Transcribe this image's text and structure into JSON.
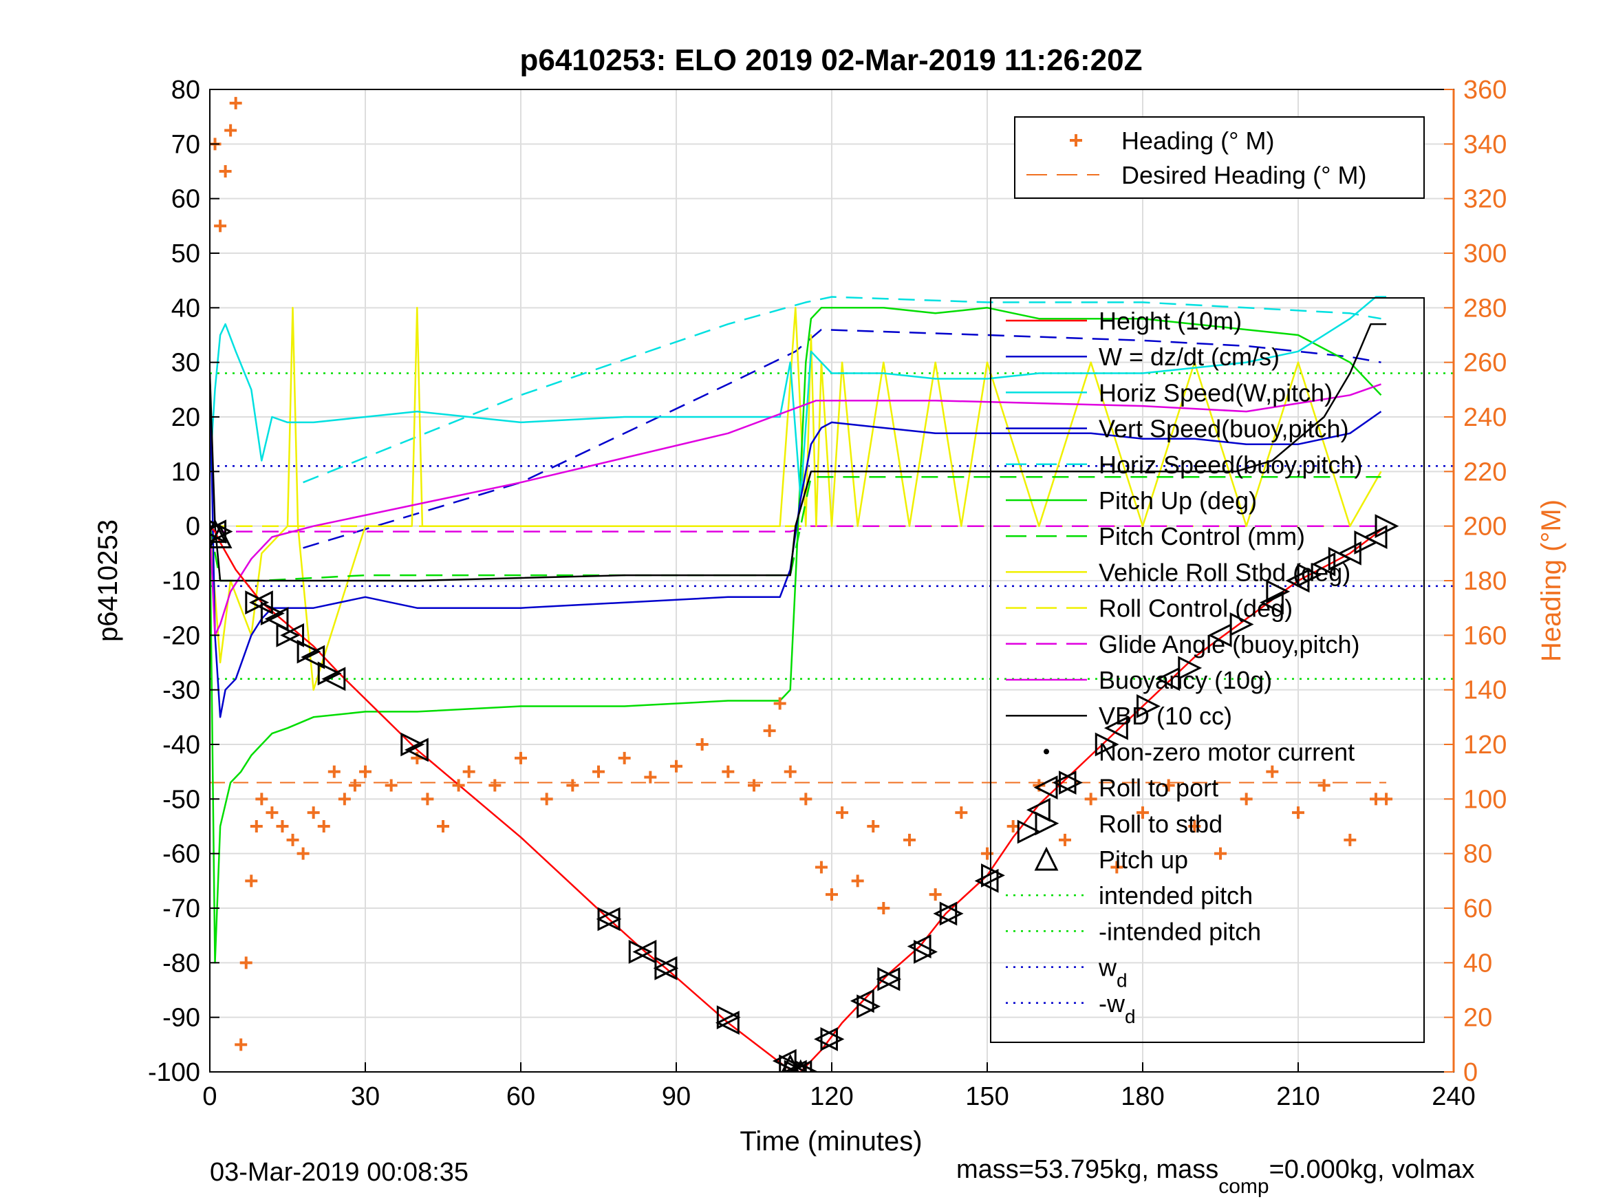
{
  "colors": {
    "heading": "#f07020",
    "height": "#ff0000",
    "w": "#0000cc",
    "horiz_speed": "#00e0e0",
    "pitch": "#00dd00",
    "roll": "#f0f000",
    "glide": "#e000e0",
    "vbd": "#000000",
    "grid": "#dddddd"
  },
  "chart_data": {
    "type": "line",
    "title": "p6410253: ELO 2019 02-Mar-2019 11:26:20Z",
    "xlabel": "Time (minutes)",
    "ylabel_left": "p6410253",
    "ylabel_right": "Heading (°M)",
    "xlim": [
      0,
      240
    ],
    "ylim_left": [
      -100,
      80
    ],
    "ylim_right": [
      0,
      360
    ],
    "grid": true,
    "x_ticks": [
      "0",
      "30",
      "60",
      "90",
      "120",
      "150",
      "180",
      "210",
      "240"
    ],
    "y_ticks_left": [
      "80",
      "70",
      "60",
      "50",
      "40",
      "30",
      "20",
      "10",
      "0",
      "-10",
      "-20",
      "-30",
      "-40",
      "-50",
      "-60",
      "-70",
      "-80",
      "-90",
      "-100"
    ],
    "y_ticks_right": [
      "360",
      "340",
      "320",
      "300",
      "280",
      "260",
      "240",
      "220",
      "200",
      "180",
      "160",
      "140",
      "120",
      "100",
      "80",
      "60",
      "40",
      "20",
      "0"
    ],
    "legend_upper": {
      "placement": "top-right",
      "entries": [
        {
          "label": "Heading (° M)",
          "style": "plus",
          "color": "#f07020"
        },
        {
          "label": "Desired Heading (° M)",
          "style": "dash",
          "color": "#f07020"
        }
      ]
    },
    "legend_main": {
      "placement": "right",
      "entries": [
        {
          "label": "Height (10m)",
          "style": "line",
          "color": "#ff0000"
        },
        {
          "label": "W = dz/dt (cm/s)",
          "style": "line",
          "color": "#0000cc"
        },
        {
          "label": "Horiz Speed(W,pitch)",
          "style": "line",
          "color": "#00e0e0"
        },
        {
          "label": "Vert Speed(buoy,pitch)",
          "style": "line",
          "color": "#0000cc"
        },
        {
          "label": "Horiz Speed(buoy,pitch)",
          "style": "dash",
          "color": "#00e0e0"
        },
        {
          "label": "Pitch Up (deg)",
          "style": "line",
          "color": "#00dd00"
        },
        {
          "label": "Pitch Control (mm)",
          "style": "dash",
          "color": "#00dd00"
        },
        {
          "label": "Vehicle Roll Stbd (deg)",
          "style": "line",
          "color": "#f0f000"
        },
        {
          "label": "Roll Control (deg)",
          "style": "dash",
          "color": "#f0f000"
        },
        {
          "label": "Glide Angle (buoy,pitch)",
          "style": "dash",
          "color": "#e000e0"
        },
        {
          "label": "Buoyancy (10g)",
          "style": "line",
          "color": "#e000e0"
        },
        {
          "label": "VBD (10 cc)",
          "style": "line",
          "color": "#000000"
        },
        {
          "label": "Non-zero motor current",
          "style": "dot",
          "color": "#000000"
        },
        {
          "label": "Roll to port",
          "style": "tri-left",
          "color": "#000000"
        },
        {
          "label": "Roll to stbd",
          "style": "tri-right",
          "color": "#000000"
        },
        {
          "label": "Pitch up",
          "style": "tri-up",
          "color": "#000000"
        },
        {
          "label": "intended pitch",
          "style": "dot-line",
          "color": "#00dd00"
        },
        {
          "label": "-intended pitch",
          "style": "dot-line",
          "color": "#00dd00"
        },
        {
          "label": "w_d",
          "style": "dot-line",
          "color": "#0000cc"
        },
        {
          "label": "-w_d",
          "style": "dot-line",
          "color": "#0000cc"
        }
      ]
    },
    "series": [
      {
        "name": "Height (10m)",
        "color": "#ff0000",
        "x": [
          0,
          1,
          2,
          5,
          10,
          15,
          20,
          25,
          40,
          60,
          77,
          84,
          88,
          100,
          111,
          113,
          114,
          115,
          118,
          122,
          127,
          131,
          137,
          142,
          150,
          155,
          160,
          170,
          180,
          190,
          200,
          210,
          220,
          227
        ],
        "y": [
          0,
          -1,
          -3,
          -8,
          -14,
          -18,
          -22,
          -27,
          -41,
          -57,
          -72,
          -78,
          -81,
          -91,
          -99,
          -100,
          -100,
          -99,
          -96,
          -91,
          -86,
          -82,
          -77,
          -71,
          -64,
          -57,
          -51,
          -42,
          -33,
          -24,
          -17,
          -10,
          -5,
          0
        ]
      },
      {
        "name": "W = dz/dt (cm/s)",
        "color": "#0000cc",
        "x": [
          0,
          1,
          2,
          3,
          5,
          8,
          10,
          12,
          15,
          20,
          30,
          40,
          60,
          80,
          100,
          110,
          112,
          114,
          116,
          118,
          120,
          130,
          140,
          150,
          160,
          170,
          180,
          190,
          200,
          210,
          220,
          226
        ],
        "y": [
          28,
          -20,
          -35,
          -30,
          -28,
          -20,
          -17,
          -15,
          -15,
          -15,
          -13,
          -15,
          -15,
          -14,
          -13,
          -13,
          -8,
          5,
          15,
          18,
          19,
          18,
          17,
          17,
          17,
          17,
          16,
          16,
          15,
          15,
          17,
          21
        ]
      },
      {
        "name": "Horiz Speed(W,pitch)",
        "color": "#00e0e0",
        "x": [
          0,
          1,
          2,
          3,
          5,
          8,
          10,
          12,
          15,
          20,
          30,
          40,
          60,
          80,
          100,
          110,
          112,
          114,
          116,
          118,
          120,
          130,
          140,
          150,
          160,
          170,
          180,
          190,
          200,
          210,
          220,
          225,
          227
        ],
        "y": [
          10,
          25,
          35,
          37,
          32,
          25,
          12,
          20,
          19,
          19,
          20,
          21,
          19,
          20,
          20,
          20,
          30,
          5,
          32,
          30,
          28,
          28,
          27,
          27,
          28,
          28,
          28,
          29,
          30,
          32,
          38,
          42,
          42
        ]
      },
      {
        "name": "Horiz Speed(buoy,pitch)",
        "color": "#00e0e0",
        "dash": true,
        "x": [
          18,
          60,
          100,
          115,
          120,
          150,
          180,
          200,
          220,
          226
        ],
        "y": [
          8,
          24,
          37,
          41,
          42,
          41,
          41,
          40,
          39,
          38
        ]
      },
      {
        "name": "Vert Speed(buoy,pitch)",
        "color": "#0000cc",
        "dash": true,
        "x": [
          18,
          60,
          100,
          113,
          118,
          150,
          180,
          200,
          220,
          226
        ],
        "y": [
          -4,
          8,
          26,
          32,
          36,
          35,
          34,
          33,
          31,
          30
        ]
      },
      {
        "name": "Pitch Up (deg)",
        "color": "#00dd00",
        "x": [
          0,
          1,
          2,
          4,
          6,
          8,
          10,
          12,
          15,
          20,
          30,
          40,
          60,
          80,
          100,
          110,
          112,
          113,
          114,
          115,
          116,
          118,
          120,
          130,
          140,
          150,
          160,
          170,
          180,
          190,
          200,
          210,
          220,
          226
        ],
        "y": [
          0,
          -80,
          -55,
          -47,
          -45,
          -42,
          -40,
          -38,
          -37,
          -35,
          -34,
          -34,
          -33,
          -33,
          -32,
          -32,
          -30,
          -10,
          10,
          30,
          38,
          40,
          40,
          40,
          39,
          40,
          38,
          38,
          38,
          37,
          36,
          35,
          30,
          24
        ]
      },
      {
        "name": "Pitch Control (mm)",
        "color": "#00dd00",
        "dash": true,
        "x": [
          0,
          2,
          10,
          30,
          60,
          90,
          112,
          114,
          116,
          150,
          200,
          226
        ],
        "y": [
          0,
          -10,
          -10,
          -9,
          -9,
          -9,
          -9,
          0,
          9,
          9,
          9,
          9
        ]
      },
      {
        "name": "Vehicle Roll Stbd (deg)",
        "color": "#f0f000",
        "x": [
          0,
          2,
          4,
          6,
          8,
          10,
          15,
          16,
          17,
          20,
          30,
          39,
          40,
          41,
          60,
          90,
          100,
          110,
          113,
          115,
          116,
          117,
          118,
          120,
          122,
          125,
          130,
          135,
          140,
          145,
          150,
          160,
          170,
          180,
          190,
          200,
          210,
          220,
          226
        ],
        "y": [
          0,
          -25,
          -10,
          -15,
          -20,
          -5,
          0,
          40,
          0,
          -30,
          0,
          0,
          40,
          0,
          0,
          0,
          0,
          0,
          40,
          0,
          35,
          0,
          30,
          0,
          30,
          0,
          30,
          0,
          30,
          0,
          30,
          0,
          30,
          0,
          30,
          0,
          30,
          0,
          10
        ]
      },
      {
        "name": "Roll Control (deg)",
        "color": "#f0f000",
        "dash": true,
        "x": [
          0,
          50,
          100,
          113,
          116,
          150,
          200,
          226
        ],
        "y": [
          0,
          0,
          0,
          0,
          0,
          0,
          0,
          0
        ]
      },
      {
        "name": "Glide Angle (buoy,pitch)",
        "color": "#e000e0",
        "dash": true,
        "x": [
          0,
          20,
          60,
          112,
          116,
          160,
          200,
          226
        ],
        "y": [
          -1,
          -1,
          -1,
          -1,
          0,
          0,
          0,
          0
        ]
      },
      {
        "name": "Buoyancy (10g)",
        "color": "#e000e0",
        "x": [
          0,
          1,
          2,
          4,
          8,
          12,
          20,
          60,
          100,
          117,
          140,
          180,
          200,
          220,
          226
        ],
        "y": [
          0,
          -20,
          -18,
          -12,
          -6,
          -2,
          0,
          8,
          17,
          23,
          23,
          22,
          21,
          24,
          26
        ]
      },
      {
        "name": "VBD (10 cc)",
        "color": "#000000",
        "x": [
          0,
          1,
          2,
          40,
          80,
          112,
          113,
          116,
          117,
          160,
          198,
          205,
          210,
          215,
          220,
          224,
          227
        ],
        "y": [
          28,
          0,
          -10,
          -10,
          -9,
          -9,
          0,
          10,
          10,
          10,
          10,
          12,
          16,
          20,
          28,
          37,
          37
        ]
      }
    ],
    "heading_series": {
      "name": "Heading (° M)",
      "axis": "right",
      "color": "#f07020",
      "x": [
        1,
        2,
        3,
        4,
        5,
        6,
        7,
        8,
        9,
        10,
        12,
        14,
        16,
        18,
        20,
        22,
        24,
        26,
        28,
        30,
        35,
        40,
        42,
        45,
        48,
        50,
        55,
        60,
        65,
        70,
        75,
        80,
        85,
        90,
        95,
        100,
        105,
        108,
        110,
        112,
        115,
        118,
        120,
        122,
        125,
        128,
        130,
        135,
        140,
        145,
        150,
        155,
        160,
        165,
        170,
        175,
        180,
        185,
        190,
        195,
        200,
        205,
        210,
        215,
        220,
        225,
        227
      ],
      "y": [
        340,
        310,
        330,
        345,
        355,
        10,
        40,
        70,
        90,
        100,
        95,
        90,
        85,
        80,
        95,
        90,
        110,
        100,
        105,
        110,
        105,
        115,
        100,
        90,
        105,
        110,
        105,
        115,
        100,
        105,
        110,
        115,
        108,
        112,
        120,
        110,
        105,
        125,
        135,
        110,
        100,
        75,
        65,
        95,
        70,
        90,
        60,
        85,
        65,
        95,
        80,
        90,
        105,
        85,
        100,
        75,
        95,
        105,
        90,
        80,
        100,
        110,
        95,
        105,
        85,
        100,
        100
      ]
    },
    "desired_heading": {
      "name": "Desired Heading (° M)",
      "axis": "right",
      "value": 106,
      "x": [
        0,
        227
      ]
    },
    "intended_pitch": 28,
    "w_d": 11,
    "markers": {
      "roll_to_port": [
        [
          1,
          -1
        ],
        [
          10,
          -14
        ],
        [
          13,
          -17
        ],
        [
          16,
          -20
        ],
        [
          20,
          -24
        ],
        [
          24,
          -28
        ],
        [
          40,
          -41
        ],
        [
          77,
          -72
        ],
        [
          84,
          -78
        ],
        [
          88,
          -81
        ],
        [
          100,
          -91
        ],
        [
          111,
          -98
        ],
        [
          113,
          -100
        ],
        [
          114,
          -100
        ],
        [
          119,
          -94
        ],
        [
          126,
          -87
        ],
        [
          131,
          -83
        ],
        [
          137,
          -77
        ],
        [
          142,
          -71
        ],
        [
          150,
          -65
        ],
        [
          160,
          -52
        ],
        [
          165,
          -47
        ],
        [
          175,
          -37
        ],
        [
          185,
          -28
        ],
        [
          195,
          -20
        ],
        [
          205,
          -14
        ],
        [
          210,
          -10
        ],
        [
          215,
          -7
        ],
        [
          220,
          -5
        ],
        [
          225,
          -2
        ]
      ],
      "roll_to_stbd": [
        [
          2,
          -1
        ],
        [
          9,
          -14
        ],
        [
          12,
          -16
        ],
        [
          15,
          -20
        ],
        [
          19,
          -23
        ],
        [
          23,
          -27
        ],
        [
          39,
          -40
        ],
        [
          77,
          -72
        ],
        [
          83,
          -78
        ],
        [
          88,
          -81
        ],
        [
          100,
          -90
        ],
        [
          112,
          -99
        ],
        [
          113,
          -100
        ],
        [
          115,
          -100
        ],
        [
          120,
          -94
        ],
        [
          127,
          -88
        ],
        [
          131,
          -83
        ],
        [
          138,
          -78
        ],
        [
          143,
          -71
        ],
        [
          151,
          -64
        ],
        [
          158,
          -56
        ],
        [
          166,
          -47
        ],
        [
          173,
          -40
        ],
        [
          181,
          -33
        ],
        [
          189,
          -26
        ],
        [
          199,
          -18
        ],
        [
          206,
          -12
        ],
        [
          212,
          -9
        ],
        [
          218,
          -6
        ],
        [
          223,
          -3
        ],
        [
          227,
          0
        ]
      ],
      "pitch_up": [
        [
          1,
          -1
        ],
        [
          2,
          -2
        ],
        [
          112,
          -99
        ],
        [
          114,
          -100
        ]
      ]
    }
  },
  "footer": {
    "timestamp": "03-Mar-2019 00:08:35",
    "mass_text": "mass=53.795kg, mass",
    "mass_sub": "comp",
    "mass_rest": "=0.000kg, volmax"
  }
}
